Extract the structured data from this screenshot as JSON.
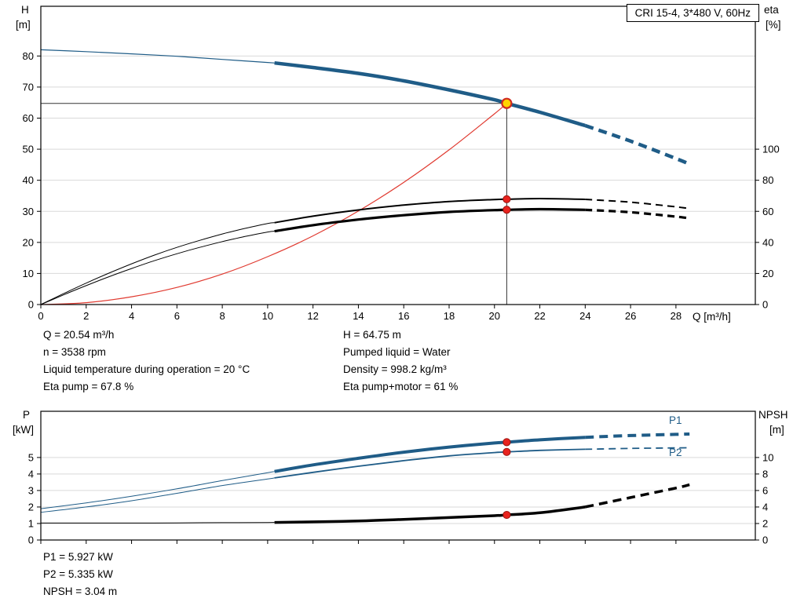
{
  "panel": {
    "title_box": "CRI 15-4, 3*480 V, 60Hz"
  },
  "axis_labels": {
    "h": "H",
    "h_unit": "[m]",
    "eta": "eta",
    "eta_unit": "[%]",
    "q": "Q [m³/h]",
    "p": "P",
    "p_unit": "[kW]",
    "npsh": "NPSH",
    "npsh_unit": "[m]"
  },
  "curve_labels": {
    "p1": "P1",
    "p2": "P2"
  },
  "info_top": {
    "left": [
      "Q = 20.54 m³/h",
      "n = 3538 rpm",
      "Liquid temperature during operation = 20 °C",
      "Eta pump = 67.8 %"
    ],
    "right": [
      "H = 64.75 m",
      "Pumped liquid = Water",
      "Density = 998.2 kg/m³",
      "Eta pump+motor = 61 %"
    ]
  },
  "info_bottom": [
    "P1 = 5.927 kW",
    "P2 = 5.335 kW",
    "NPSH = 3.04 m"
  ],
  "colors": {
    "curve_blue": "#1f5c87",
    "curve_black": "#000000",
    "curve_red": "#e03a30",
    "marker_red": "#e8231e",
    "marker_yellow": "#ffd400",
    "grid": "#d9d9d9"
  },
  "chart_data": [
    {
      "name": "qh-eta-chart",
      "type": "line",
      "title": "CRI 15-4, 3*480 V, 60Hz",
      "x_axis": {
        "label": "Q [m³/h]",
        "min": 0,
        "max": 31.5,
        "ticks": [
          0,
          2,
          4,
          6,
          8,
          10,
          12,
          14,
          16,
          18,
          20,
          22,
          24,
          26,
          28
        ],
        "show_tick_labels": true
      },
      "y_left": {
        "label": "H [m]",
        "min": 0,
        "max": 96,
        "ticks": [
          0,
          10,
          20,
          30,
          40,
          50,
          60,
          70,
          80
        ]
      },
      "y_right": {
        "label": "eta [%]",
        "min": 0,
        "max": 192,
        "ticks": [
          0,
          20,
          40,
          60,
          80,
          100
        ]
      },
      "crosshair": {
        "q": 20.54,
        "v": 64.75
      },
      "series": [
        {
          "name": "head",
          "axis": "left",
          "color": "#1f5c87",
          "points": [
            [
              0,
              82
            ],
            [
              2,
              81.4
            ],
            [
              4,
              80.7
            ],
            [
              6,
              79.9
            ],
            [
              8,
              78.9
            ],
            [
              10,
              77.9
            ],
            [
              10.3,
              77.75
            ],
            [
              12,
              76.3
            ],
            [
              14,
              74.4
            ],
            [
              16,
              72.0
            ],
            [
              18,
              69.1
            ],
            [
              20,
              65.9
            ],
            [
              20.54,
              64.75
            ],
            [
              22,
              61.9
            ],
            [
              24,
              57.6
            ],
            [
              26,
              52.6
            ],
            [
              28,
              47.0
            ],
            [
              28.6,
              45.2
            ]
          ],
          "segments": [
            {
              "q0": 0,
              "q1": 10.3,
              "w": 1.2
            },
            {
              "q0": 10.3,
              "q1": 24,
              "w": 4.5
            },
            {
              "q0": 24,
              "q1": 28.6,
              "w": 4.5,
              "dash": "11 7"
            }
          ]
        },
        {
          "name": "system-curve",
          "axis": "left",
          "color": "#e03a30",
          "points": [
            [
              0,
              0
            ],
            [
              2,
              0.6
            ],
            [
              4,
              2.5
            ],
            [
              6,
              5.5
            ],
            [
              8,
              9.8
            ],
            [
              10,
              15.4
            ],
            [
              12,
              22.1
            ],
            [
              14,
              30.1
            ],
            [
              16,
              39.3
            ],
            [
              18,
              49.8
            ],
            [
              20,
              61.4
            ],
            [
              20.54,
              64.75
            ]
          ],
          "segments": [
            {
              "q0": 0,
              "q1": 20.54,
              "w": 1.2
            }
          ]
        },
        {
          "name": "eta-pump",
          "axis": "right",
          "color": "#000000",
          "points": [
            [
              0,
              0
            ],
            [
              1,
              7
            ],
            [
              2,
              13.8
            ],
            [
              3,
              20.2
            ],
            [
              4,
              26.2
            ],
            [
              5,
              31.8
            ],
            [
              6,
              36.8
            ],
            [
              7,
              41.3
            ],
            [
              8,
              45.4
            ],
            [
              9,
              49
            ],
            [
              10,
              52.2
            ],
            [
              10.3,
              52.7
            ],
            [
              12,
              56.9
            ],
            [
              14,
              60.9
            ],
            [
              16,
              64
            ],
            [
              18,
              66.3
            ],
            [
              20,
              67.6
            ],
            [
              20.54,
              67.8
            ],
            [
              22,
              68.2
            ],
            [
              24,
              67.7
            ],
            [
              26,
              65.9
            ],
            [
              28,
              62.9
            ],
            [
              28.6,
              61.8
            ]
          ],
          "segments": [
            {
              "q0": 0,
              "q1": 10.3,
              "w": 1
            },
            {
              "q0": 10.3,
              "q1": 24,
              "w": 2
            },
            {
              "q0": 24,
              "q1": 28.6,
              "w": 2,
              "dash": "9 6"
            }
          ]
        },
        {
          "name": "eta-pump-motor",
          "axis": "right",
          "color": "#000000",
          "points": [
            [
              0,
              0
            ],
            [
              1,
              6.2
            ],
            [
              2,
              12.2
            ],
            [
              3,
              17.9
            ],
            [
              4,
              23.2
            ],
            [
              5,
              28.2
            ],
            [
              6,
              32.7
            ],
            [
              7,
              36.8
            ],
            [
              8,
              40.5
            ],
            [
              9,
              43.8
            ],
            [
              10,
              46.7
            ],
            [
              10.3,
              47.2
            ],
            [
              12,
              51.1
            ],
            [
              14,
              54.7
            ],
            [
              16,
              57.5
            ],
            [
              18,
              59.6
            ],
            [
              20,
              60.8
            ],
            [
              20.54,
              61
            ],
            [
              22,
              61.4
            ],
            [
              24,
              61
            ],
            [
              26,
              59.4
            ],
            [
              28,
              56.6
            ],
            [
              28.6,
              55.5
            ]
          ],
          "segments": [
            {
              "q0": 0,
              "q1": 10.3,
              "w": 1
            },
            {
              "q0": 10.3,
              "q1": 24,
              "w": 3.2
            },
            {
              "q0": 24,
              "q1": 28.6,
              "w": 3.2,
              "dash": "9 6"
            }
          ]
        }
      ],
      "markers": [
        {
          "q": 20.54,
          "v": 64.75,
          "axis": "left",
          "kind": "duty-point"
        },
        {
          "q": 20.54,
          "v": 67.8,
          "axis": "right",
          "kind": "dot"
        },
        {
          "q": 20.54,
          "v": 61,
          "axis": "right",
          "kind": "dot"
        }
      ]
    },
    {
      "name": "power-npsh-chart",
      "type": "line",
      "x_axis": {
        "label": "",
        "min": 0,
        "max": 31.5,
        "ticks": [
          0,
          2,
          4,
          6,
          8,
          10,
          12,
          14,
          16,
          18,
          20,
          22,
          24,
          26,
          28
        ],
        "show_tick_labels": false
      },
      "y_left": {
        "label": "P [kW]",
        "min": 0,
        "max": 7.8,
        "ticks": [
          0,
          1,
          2,
          3,
          4,
          5
        ]
      },
      "y_right": {
        "label": "NPSH [m]",
        "min": 0,
        "max": 15.6,
        "ticks": [
          0,
          2,
          4,
          6,
          8,
          10
        ]
      },
      "series": [
        {
          "name": "p1",
          "axis": "left",
          "color": "#1f5c87",
          "points": [
            [
              0,
              1.9
            ],
            [
              2,
              2.25
            ],
            [
              4,
              2.65
            ],
            [
              6,
              3.1
            ],
            [
              8,
              3.6
            ],
            [
              10,
              4.08
            ],
            [
              10.3,
              4.15
            ],
            [
              12,
              4.55
            ],
            [
              14,
              4.95
            ],
            [
              16,
              5.32
            ],
            [
              18,
              5.63
            ],
            [
              20,
              5.88
            ],
            [
              20.54,
              5.927
            ],
            [
              22,
              6.07
            ],
            [
              24,
              6.22
            ],
            [
              26,
              6.33
            ],
            [
              28,
              6.4
            ],
            [
              28.6,
              6.42
            ]
          ],
          "segments": [
            {
              "q0": 0,
              "q1": 10.3,
              "w": 1
            },
            {
              "q0": 10.3,
              "q1": 24,
              "w": 4
            },
            {
              "q0": 24,
              "q1": 28.6,
              "w": 4,
              "dash": "11 7"
            }
          ]
        },
        {
          "name": "p2",
          "axis": "left",
          "color": "#1f5c87",
          "points": [
            [
              0,
              1.68
            ],
            [
              2,
              2.0
            ],
            [
              4,
              2.38
            ],
            [
              6,
              2.83
            ],
            [
              8,
              3.3
            ],
            [
              10,
              3.7
            ],
            [
              10.3,
              3.76
            ],
            [
              12,
              4.1
            ],
            [
              14,
              4.47
            ],
            [
              16,
              4.81
            ],
            [
              18,
              5.1
            ],
            [
              20,
              5.3
            ],
            [
              20.54,
              5.335
            ],
            [
              22,
              5.43
            ],
            [
              24,
              5.5
            ],
            [
              26,
              5.55
            ],
            [
              28,
              5.58
            ],
            [
              28.6,
              5.59
            ]
          ],
          "segments": [
            {
              "q0": 0,
              "q1": 10.3,
              "w": 1
            },
            {
              "q0": 10.3,
              "q1": 24,
              "w": 1.8
            },
            {
              "q0": 24,
              "q1": 28.6,
              "w": 1.8,
              "dash": "9 6"
            }
          ]
        },
        {
          "name": "npsh",
          "axis": "right",
          "color": "#000000",
          "points": [
            [
              0,
              2.05
            ],
            [
              2,
              2.05
            ],
            [
              4,
              2.05
            ],
            [
              6,
              2.07
            ],
            [
              8,
              2.1
            ],
            [
              10,
              2.12
            ],
            [
              10.3,
              2.13
            ],
            [
              12,
              2.2
            ],
            [
              14,
              2.3
            ],
            [
              16,
              2.5
            ],
            [
              18,
              2.72
            ],
            [
              20,
              2.95
            ],
            [
              20.54,
              3.04
            ],
            [
              22,
              3.3
            ],
            [
              24,
              4.0
            ],
            [
              26,
              5.15
            ],
            [
              28,
              6.3
            ],
            [
              28.6,
              6.7
            ]
          ],
          "segments": [
            {
              "q0": 0,
              "q1": 10.3,
              "w": 1
            },
            {
              "q0": 10.3,
              "q1": 24,
              "w": 3.5
            },
            {
              "q0": 24,
              "q1": 28.6,
              "w": 3.5,
              "dash": "11 7"
            }
          ]
        }
      ],
      "markers": [
        {
          "q": 20.54,
          "v": 5.927,
          "axis": "left",
          "kind": "dot"
        },
        {
          "q": 20.54,
          "v": 5.335,
          "axis": "left",
          "kind": "dot"
        },
        {
          "q": 20.54,
          "v": 3.04,
          "axis": "right",
          "kind": "dot"
        }
      ]
    }
  ]
}
